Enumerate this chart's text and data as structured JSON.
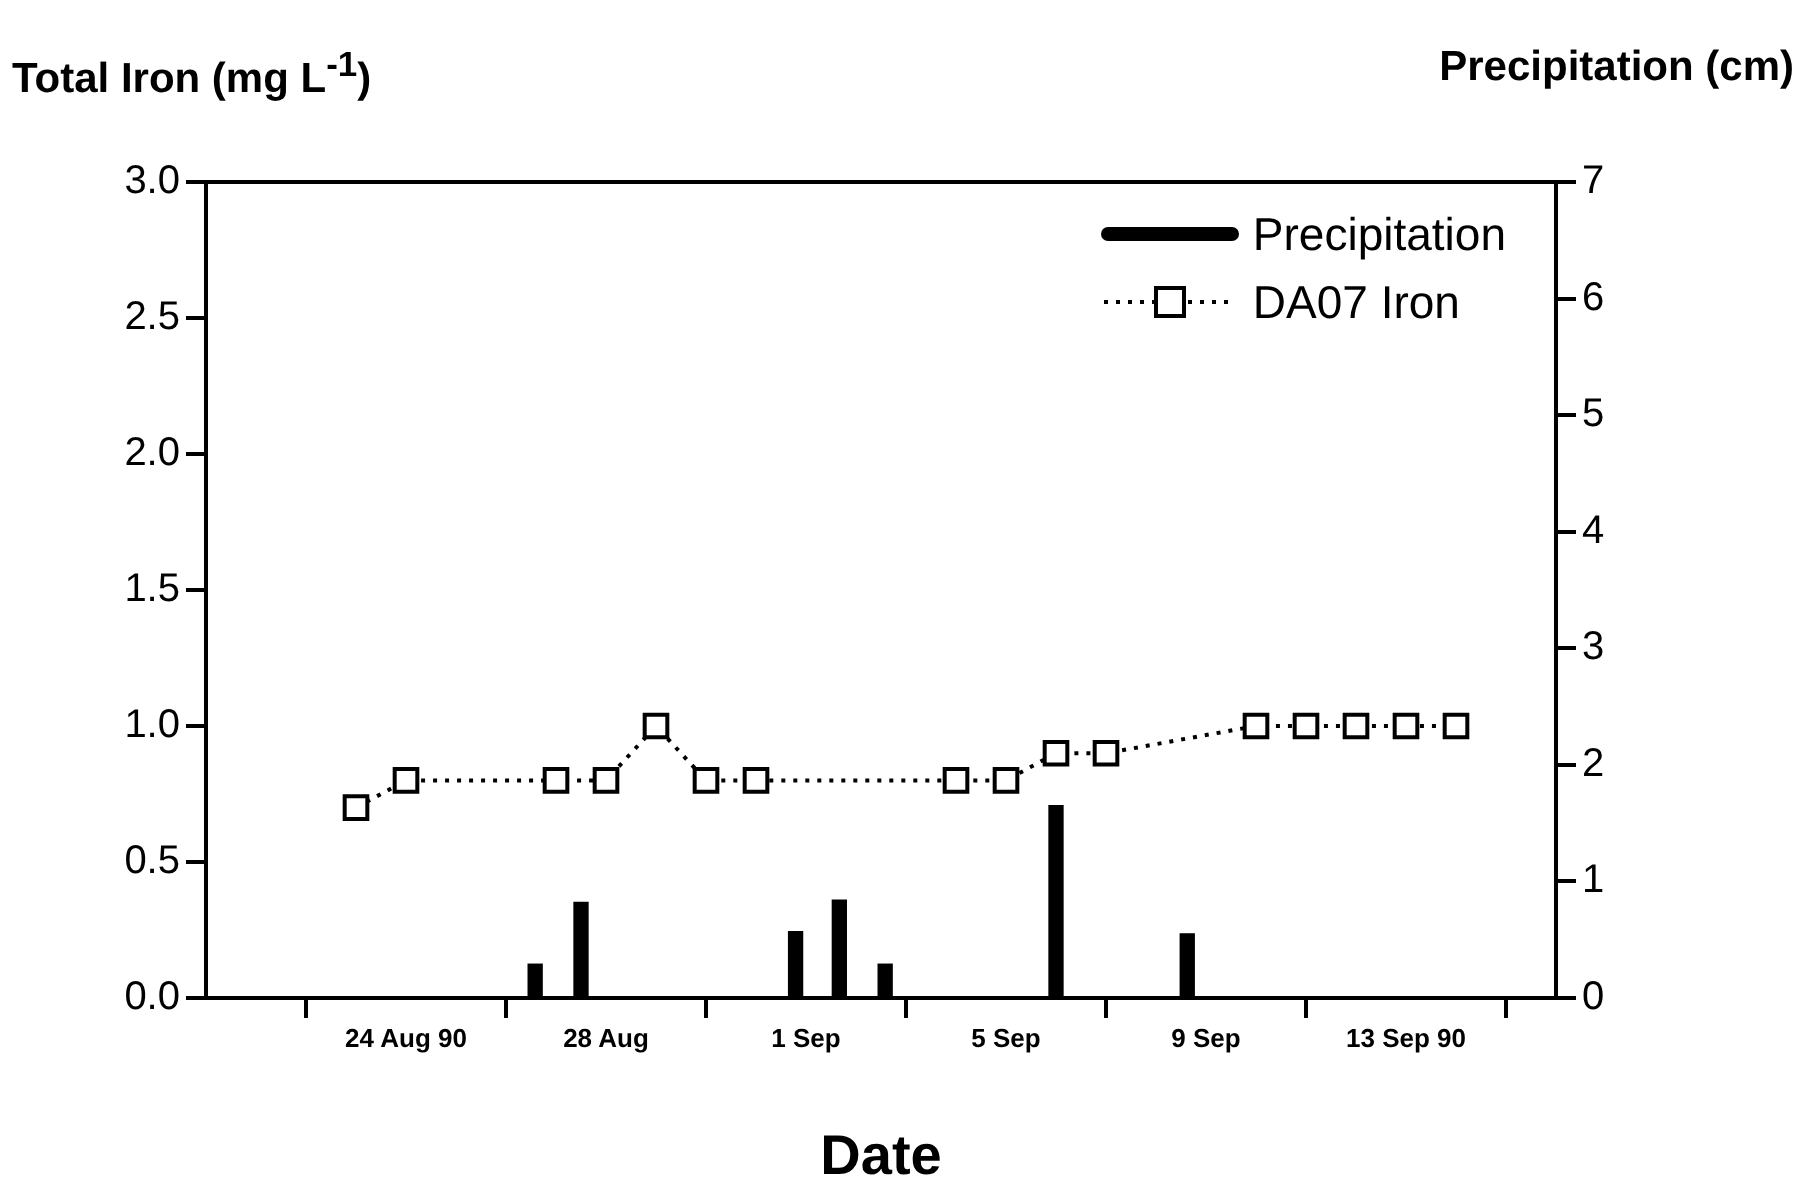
{
  "chart_data": {
    "type": "line",
    "xlabel": "Date",
    "ylabel": "Total Iron (mg L$^{-1}$)",
    "y2label": "Precipitation (cm)",
    "xlim": [
      "1990-08-20",
      "1990-09-16"
    ],
    "xticks": [
      {
        "value": "1990-08-24",
        "label": "24 Aug 90"
      },
      {
        "value": "1990-08-28",
        "label": "28 Aug"
      },
      {
        "value": "1990-09-01",
        "label": "1 Sep"
      },
      {
        "value": "1990-09-05",
        "label": "5 Sep"
      },
      {
        "value": "1990-09-09",
        "label": "9 Sep"
      },
      {
        "value": "1990-09-13",
        "label": "13 Sep 90"
      }
    ],
    "ylim": [
      0,
      3
    ],
    "yticks": [
      {
        "value": 0,
        "label": "0.0"
      },
      {
        "value": 0.5,
        "label": "0.5"
      },
      {
        "value": 1,
        "label": "1.0"
      },
      {
        "value": 1.5,
        "label": "1.5"
      },
      {
        "value": 2,
        "label": "2.0"
      },
      {
        "value": 2.5,
        "label": "2.5"
      },
      {
        "value": 3,
        "label": "3.0"
      }
    ],
    "y2lim": [
      0,
      7
    ],
    "y2ticks": [
      0,
      1,
      2,
      3,
      4,
      5,
      6,
      7
    ],
    "grid": false,
    "legend": "top right",
    "series": [
      {
        "name": "Precipitation",
        "type": "bar",
        "axis": "y2",
        "color": "#000000",
        "x": [
          "1990-08-26T14:00",
          "1990-08-27T12:00",
          "1990-08-31T19:00",
          "1990-09-01T16:00",
          "1990-09-02T14:00",
          "1990-09-06",
          "1990-09-08T15:00"
        ],
        "values": [
          0.29,
          0.82,
          0.57,
          0.84,
          0.29,
          1.65,
          0.55
        ]
      },
      {
        "name": "DA07 Iron",
        "color": "#000000",
        "marker": "square",
        "line_style": "dotted",
        "x": [
          "1990-08-23",
          "1990-08-24",
          "1990-08-27",
          "1990-08-28",
          "1990-08-29",
          "1990-08-30",
          "1990-08-31",
          "1990-09-04",
          "1990-09-05",
          "1990-09-06",
          "1990-09-07",
          "1990-09-10",
          "1990-09-11",
          "1990-09-12",
          "1990-09-13",
          "1990-09-14"
        ],
        "values": [
          0.7,
          0.8,
          0.8,
          0.8,
          1.0,
          0.8,
          0.8,
          0.8,
          0.8,
          0.9,
          0.9,
          1.0,
          1.0,
          1.0,
          1.0,
          1.0
        ]
      }
    ]
  }
}
